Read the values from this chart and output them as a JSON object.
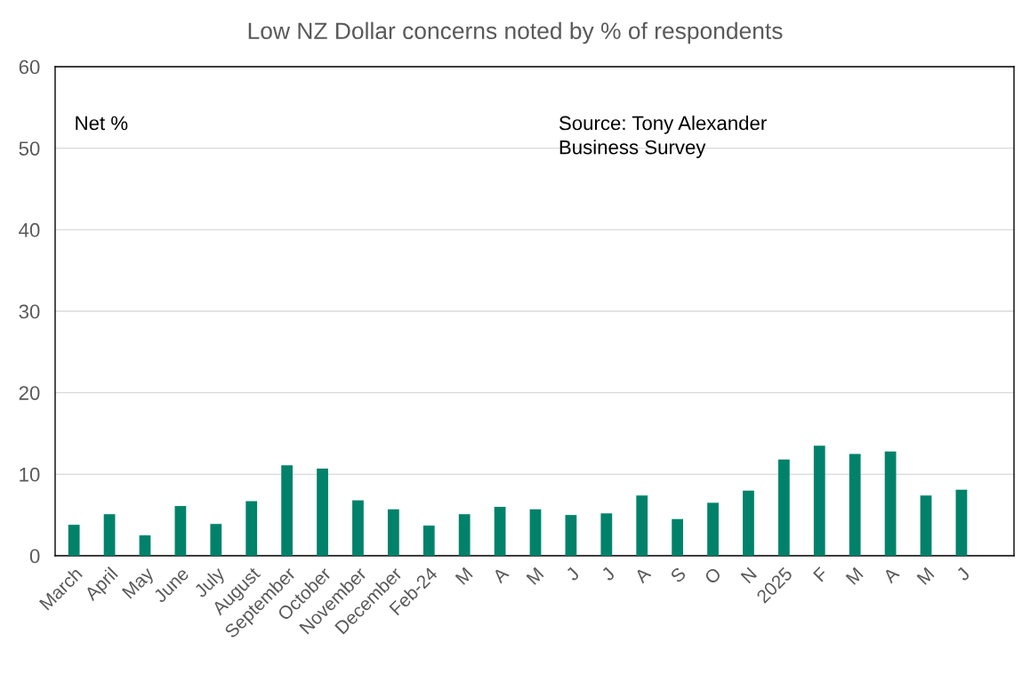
{
  "chart_data": {
    "type": "bar",
    "title": "Low NZ Dollar concerns noted by % of respondents",
    "categories": [
      "March",
      "April",
      "May",
      "June",
      "July",
      "August",
      "September",
      "October",
      "November",
      "December",
      "Feb-24",
      "M",
      "A",
      "M",
      "J",
      "J",
      "A",
      "S",
      "O",
      "N",
      "2025",
      "F",
      "M",
      "A",
      "M",
      "J"
    ],
    "values": [
      3.8,
      5.1,
      2.5,
      6.1,
      3.9,
      6.7,
      11.1,
      10.7,
      6.8,
      5.7,
      3.7,
      5.1,
      6.0,
      5.7,
      5.0,
      5.2,
      7.4,
      4.5,
      6.5,
      8.0,
      11.8,
      13.5,
      12.5,
      12.8,
      7.4,
      8.1
    ],
    "color": "#00826a",
    "ylim": [
      0,
      60
    ],
    "yticks": [
      0,
      10,
      20,
      30,
      40,
      50,
      60
    ],
    "grid": "y",
    "annotations": [
      "Net %",
      "Source: Tony Alexander Business Survey"
    ]
  }
}
